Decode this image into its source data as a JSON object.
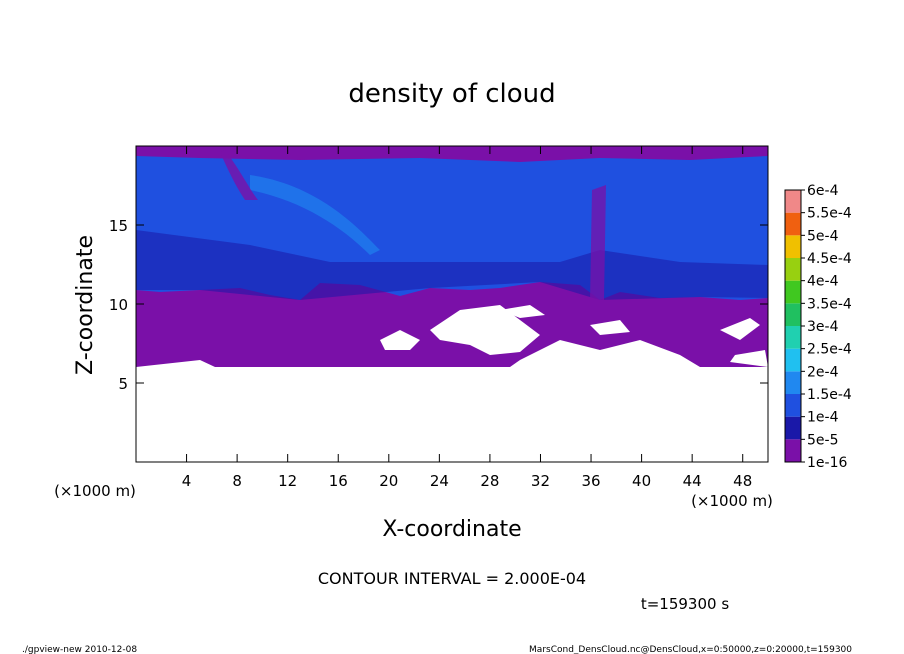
{
  "chart_data": {
    "type": "contour",
    "title": "density of cloud",
    "xlabel": "X-coordinate",
    "ylabel": "Z-coordinate",
    "x_unit_left": "(×1000 m)",
    "x_unit_right": "(×1000 m)",
    "contour_interval": "CONTOUR INTERVAL = 2.000E-04",
    "time_label": "t=159300 s",
    "footer_left": "./gpview-new  2010-12-08",
    "footer_right": "MarsCond_DensCloud.nc@DensCloud,x=0:50000,z=0:20000,t=159300",
    "xlim": [
      0,
      50
    ],
    "xticks": [
      4,
      8,
      12,
      16,
      20,
      24,
      28,
      32,
      36,
      40,
      44,
      48
    ],
    "ylim": [
      0,
      20
    ],
    "yticks": [
      5,
      10,
      15
    ],
    "colorbar": {
      "levels": [
        {
          "value": 1e-16,
          "label": "1e-16"
        },
        {
          "value": 5e-05,
          "label": "5e-5"
        },
        {
          "value": 0.0001,
          "label": "1e-4"
        },
        {
          "value": 0.00015,
          "label": "1.5e-4"
        },
        {
          "value": 0.0002,
          "label": "2e-4"
        },
        {
          "value": 0.00025,
          "label": "2.5e-4"
        },
        {
          "value": 0.0003,
          "label": "3e-4"
        },
        {
          "value": 0.00035,
          "label": "3.5e-4"
        },
        {
          "value": 0.0004,
          "label": "4e-4"
        },
        {
          "value": 0.00045,
          "label": "4.5e-4"
        },
        {
          "value": 0.0005,
          "label": "5e-4"
        },
        {
          "value": 0.00055,
          "label": "5.5e-4"
        },
        {
          "value": 0.0006,
          "label": "6e-4"
        }
      ],
      "colors": [
        "#7a10a8",
        "#1a18a8",
        "#1f50e0",
        "#2088f0",
        "#20c0f0",
        "#20d0b0",
        "#20c060",
        "#40c820",
        "#98d010",
        "#f0c000",
        "#f06010",
        "#f08888"
      ]
    }
  }
}
